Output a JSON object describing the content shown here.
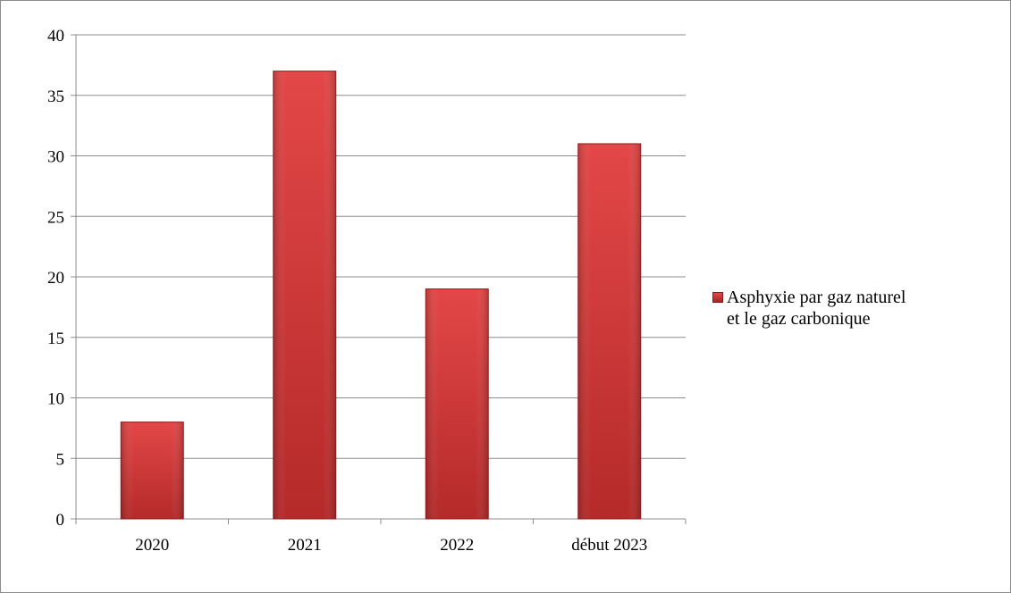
{
  "chart_data": {
    "type": "bar",
    "categories": [
      "2020",
      "2021",
      "2022",
      "début 2023"
    ],
    "series": [
      {
        "name": "Asphyxie par gaz naturel et le gaz carbonique",
        "values": [
          8,
          37,
          19,
          31
        ],
        "color": "#d23c3c"
      }
    ],
    "title": "",
    "xlabel": "",
    "ylabel": "",
    "ylim": [
      0,
      40
    ],
    "yticks": [
      "0",
      "5",
      "10",
      "15",
      "20",
      "25",
      "30",
      "35",
      "40"
    ],
    "grid": true,
    "legend_position": "right",
    "legend_lines": [
      "Asphyxie par gaz naturel",
      "et le gaz carbonique"
    ]
  }
}
